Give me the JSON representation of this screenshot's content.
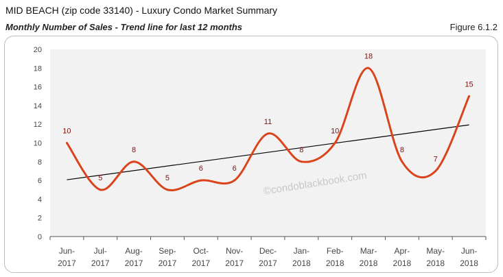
{
  "header": {
    "title": "MID BEACH (zip code 33140) - Luxury Condo Market Summary",
    "subtitle": "Monthly Number of Sales - Trend line for last 12 months",
    "figure": "Figure 6.1.2"
  },
  "watermark": "©condoblackbook.com",
  "chart_data": {
    "type": "line",
    "categories": [
      [
        "Jun-",
        "2017"
      ],
      [
        "Jul-",
        "2017"
      ],
      [
        "Aug-",
        "2017"
      ],
      [
        "Sep-",
        "2017"
      ],
      [
        "Oct-",
        "2017"
      ],
      [
        "Nov-",
        "2017"
      ],
      [
        "Dec-",
        "2017"
      ],
      [
        "Jan-",
        "2018"
      ],
      [
        "Feb-",
        "2018"
      ],
      [
        "Mar-",
        "2018"
      ],
      [
        "Apr-",
        "2018"
      ],
      [
        "May-",
        "2018"
      ],
      [
        "Jun-",
        "2018"
      ]
    ],
    "values": [
      10,
      5,
      8,
      5,
      6,
      6,
      11,
      8,
      10,
      18,
      8,
      7,
      15
    ],
    "trendline": "linear",
    "ylim": [
      0,
      20
    ],
    "yticks": [
      0,
      2,
      4,
      6,
      8,
      10,
      12,
      14,
      16,
      18,
      20
    ],
    "smoothed": true,
    "grid": false,
    "colors": {
      "series": "#d9441c",
      "labels": "#7a1010",
      "trend": "#000000",
      "plot_bg": "#f2f2f2"
    }
  }
}
